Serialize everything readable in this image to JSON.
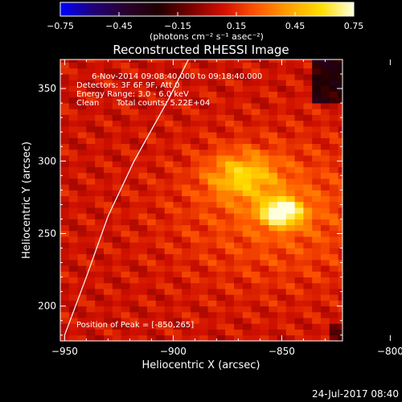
{
  "colorbar": {
    "ticks": [
      "-0.75",
      "-0.45",
      "-0.15",
      "0.15",
      "0.45",
      "0.75"
    ],
    "units_label": "(photons cm⁻² s⁻¹ asec⁻²)",
    "range": [
      -0.75,
      0.75
    ],
    "colormap": [
      "#0000ff",
      "#20007a",
      "#2a0030",
      "#200000",
      "#7a0000",
      "#d01000",
      "#ff5500",
      "#ffa000",
      "#ffdd00",
      "#ffffe0"
    ]
  },
  "chart_data": {
    "type": "heatmap",
    "title": "Reconstructed RHESSI Image",
    "xlabel": "Heliocentric X (arcsec)",
    "ylabel": "Heliocentric Y (arcsec)",
    "xlim": [
      -952,
      -822
    ],
    "ylim": [
      176,
      370
    ],
    "xticks": [
      -950,
      -900,
      -850,
      -800
    ],
    "xtick_labels": [
      "−950",
      "−900",
      "−850",
      "−800"
    ],
    "yticks": [
      200,
      250,
      300,
      350
    ],
    "ytick_labels": [
      "200",
      "250",
      "300",
      "350"
    ],
    "peak": {
      "x": -850,
      "y": 265,
      "value": 0.75
    },
    "secondary_source": {
      "x": -868,
      "y": 290,
      "value": 0.45
    },
    "limb_curve": [
      [
        -950,
        180
      ],
      [
        -940,
        220
      ],
      [
        -930,
        262
      ],
      [
        -918,
        300
      ],
      [
        -902,
        343
      ],
      [
        -893,
        370
      ]
    ],
    "annotations": {
      "time_range": "6-Nov-2014 09:08:40.000 to 09:18:40.000",
      "detectors": "Detectors: 3F 6F 9F, Att 0",
      "energy": "Energy Range: 3.0 - 6.0 keV",
      "method": "Clean",
      "counts": "Total counts: 5.22E+04",
      "peak_position": "Position of Peak = [-850,265]"
    }
  },
  "footer": {
    "date": "24-Jul-2017 08:40"
  }
}
